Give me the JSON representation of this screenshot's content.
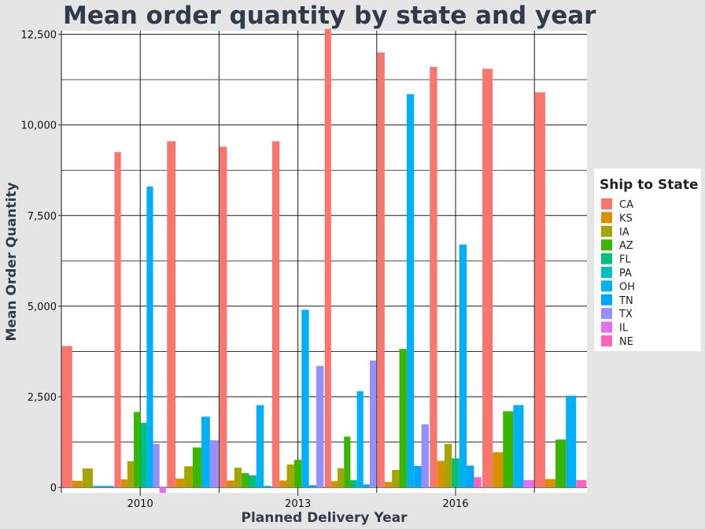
{
  "chart_data": {
    "type": "bar",
    "title": "Mean order quantity by state and year",
    "xlabel": "Planned Delivery Year",
    "ylabel": "Mean Order Quantity",
    "ylim": [
      -150,
      12600
    ],
    "yticks": [
      0,
      2500,
      5000,
      7500,
      10000,
      12500
    ],
    "ytick_labels": [
      "0",
      "2,500",
      "5,000",
      "7,500",
      "10,000",
      "12,500"
    ],
    "categories": [
      2009,
      2010,
      2011,
      2012,
      2013,
      2014,
      2015,
      2016,
      2017,
      2018
    ],
    "xticks": [
      2010,
      2013,
      2016
    ],
    "xtick_labels": [
      "2010",
      "2013",
      "2016"
    ],
    "grid": true,
    "legend": {
      "title": "Ship to State",
      "position": "right"
    },
    "series": [
      {
        "name": "CA",
        "color": "#f8766d",
        "values": [
          3900,
          9250,
          9550,
          9400,
          9550,
          12650,
          12000,
          11600,
          11550,
          10900
        ]
      },
      {
        "name": "KS",
        "color": "#d89000",
        "values": [
          180,
          220,
          240,
          190,
          190,
          170,
          150,
          730,
          970,
          230
        ]
      },
      {
        "name": "IA",
        "color": "#a3a500",
        "values": [
          520,
          720,
          580,
          540,
          630,
          530,
          480,
          1200,
          null,
          null
        ]
      },
      {
        "name": "AZ",
        "color": "#39b600",
        "values": [
          null,
          2080,
          1100,
          390,
          760,
          1400,
          3820,
          null,
          2100,
          1320
        ]
      },
      {
        "name": "FL",
        "color": "#00bf7d",
        "values": [
          null,
          1780,
          null,
          330,
          null,
          200,
          null,
          800,
          null,
          null
        ]
      },
      {
        "name": "PA",
        "color": "#00bfc4",
        "values": [
          40,
          null,
          null,
          null,
          null,
          null,
          null,
          null,
          null,
          null
        ]
      },
      {
        "name": "OH",
        "color": "#00b0f6",
        "values": [
          40,
          8300,
          1950,
          2270,
          4900,
          2650,
          10850,
          6700,
          2270,
          2530
        ]
      },
      {
        "name": "TN",
        "color": "#00a5ff",
        "values": [
          null,
          null,
          null,
          40,
          60,
          80,
          590,
          600,
          null,
          null
        ]
      },
      {
        "name": "TX",
        "color": "#9590ff",
        "values": [
          null,
          1200,
          1300,
          null,
          3350,
          3500,
          1740,
          null,
          null,
          null
        ]
      },
      {
        "name": "IL",
        "color": "#e76bf3",
        "values": [
          null,
          -150,
          null,
          null,
          null,
          null,
          null,
          null,
          200,
          null
        ]
      },
      {
        "name": "NE",
        "color": "#ff62bc",
        "values": [
          null,
          null,
          null,
          null,
          null,
          null,
          null,
          280,
          null,
          200
        ]
      }
    ]
  }
}
